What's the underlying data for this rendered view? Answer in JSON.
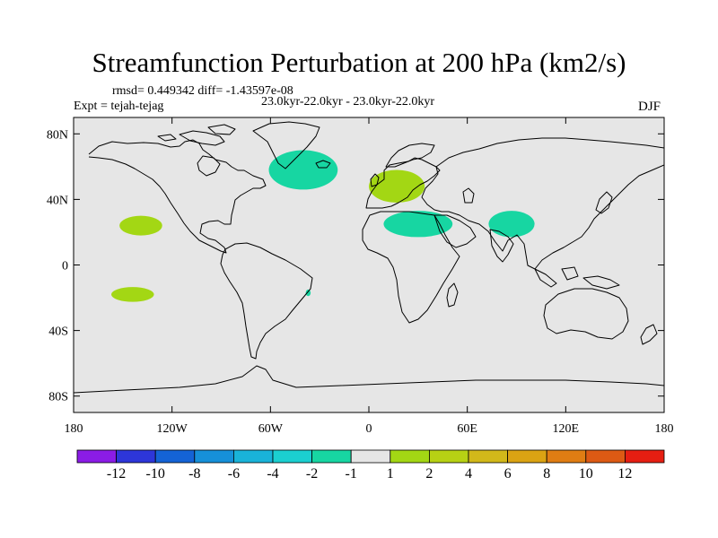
{
  "title": "Streamfunction Perturbation at 200 hPa (km2/s)",
  "subtitle": {
    "rmsd": "rmsd= 0.449342 diff= -1.43597e-08",
    "expt": "Expt = tejah-tejag",
    "period": "23.0kyr-22.0kyr - 23.0kyr-22.0kyr",
    "season": "DJF"
  },
  "axes": {
    "lat_ticks": [
      {
        "label": "80N",
        "lat": 80
      },
      {
        "label": "40N",
        "lat": 40
      },
      {
        "label": "0",
        "lat": 0
      },
      {
        "label": "40S",
        "lat": -40
      },
      {
        "label": "80S",
        "lat": -80
      }
    ],
    "lon_ticks": [
      {
        "label": "180",
        "lon": -180
      },
      {
        "label": "120W",
        "lon": -120
      },
      {
        "label": "60W",
        "lon": -60
      },
      {
        "label": "0",
        "lon": 0
      },
      {
        "label": "60E",
        "lon": 60
      },
      {
        "label": "120E",
        "lon": 120
      },
      {
        "label": "180",
        "lon": 180
      }
    ],
    "lat_range": [
      -90,
      90
    ],
    "lon_range": [
      -180,
      180
    ]
  },
  "colorbar": {
    "colors": [
      "#8b1ce6",
      "#2d36d9",
      "#1463d6",
      "#1690d9",
      "#19b3d9",
      "#1bcfd0",
      "#17d6a2",
      "#e6e6e6",
      "#a3d714",
      "#b7d114",
      "#d2b81a",
      "#dba313",
      "#e07d13",
      "#dd5a14",
      "#e61e12"
    ],
    "labels": [
      "-12",
      "-10",
      "-8",
      "-6",
      "-4",
      "-2",
      "-1",
      "1",
      "2",
      "4",
      "6",
      "8",
      "10",
      "12"
    ]
  },
  "anomalies": [
    {
      "name": "north-atlantic",
      "type": "negative",
      "color": "#17d6a2",
      "lon": -40,
      "lat": 58,
      "rlon": 21,
      "rlat": 12
    },
    {
      "name": "europe",
      "type": "positive",
      "color": "#a3d714",
      "lon": 17,
      "lat": 48,
      "rlon": 17,
      "rlat": 10
    },
    {
      "name": "mediterranean-arabia",
      "type": "negative",
      "color": "#17d6a2",
      "lon": 30,
      "lat": 25,
      "rlon": 21,
      "rlat": 8
    },
    {
      "name": "south-asia",
      "type": "negative",
      "color": "#17d6a2",
      "lon": 87,
      "lat": 25,
      "rlon": 14,
      "rlat": 8
    },
    {
      "name": "east-pacific-north",
      "type": "positive",
      "color": "#a3d714",
      "lon": -139,
      "lat": 24,
      "rlon": 13,
      "rlat": 6
    },
    {
      "name": "south-pacific",
      "type": "positive",
      "color": "#a3d714",
      "lon": -144,
      "lat": -18,
      "rlon": 13,
      "rlat": 4.5
    },
    {
      "name": "brazil-coast",
      "type": "negative",
      "color": "#17d6a2",
      "lon": -37,
      "lat": -17,
      "rlon": 1.5,
      "rlat": 2
    }
  ]
}
